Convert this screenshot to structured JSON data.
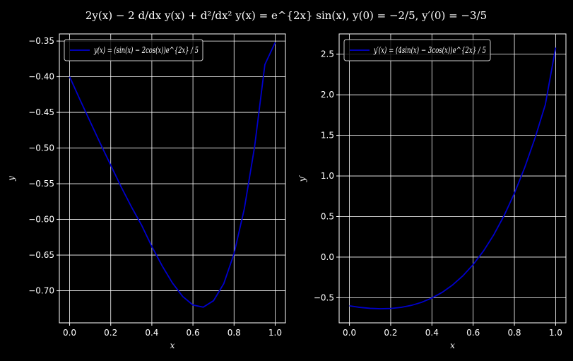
{
  "figure": {
    "title": "2y(x) − 2 d/dx y(x) + d²/dx² y(x) = e^{2x} sin(x), y(0) = −2/5, y′(0) = −3/5"
  },
  "colors": {
    "background": "#000000",
    "grid": "#ffffff",
    "line": "#0000cc",
    "text": "#ffffff"
  },
  "chart_data": [
    {
      "type": "line",
      "xlabel": "x",
      "ylabel": "y",
      "xlim": [
        -0.05,
        1.05
      ],
      "ylim": [
        -0.745,
        -0.34
      ],
      "xticks": [
        0.0,
        0.2,
        0.4,
        0.6,
        0.8,
        1.0
      ],
      "xtick_labels": [
        "0.0",
        "0.2",
        "0.4",
        "0.6",
        "0.8",
        "1.0"
      ],
      "yticks": [
        -0.7,
        -0.65,
        -0.6,
        -0.55,
        -0.5,
        -0.45,
        -0.4,
        -0.35
      ],
      "ytick_labels": [
        "−0.70",
        "−0.65",
        "−0.60",
        "−0.55",
        "−0.50",
        "−0.45",
        "−0.40",
        "−0.35"
      ],
      "grid": true,
      "legend_position": "top-left",
      "series": [
        {
          "name": "y(x) = (sin(x) − 2cos(x))e^{2x} / 5",
          "x": [
            0.0,
            0.05,
            0.1,
            0.15,
            0.2,
            0.25,
            0.3,
            0.35,
            0.4,
            0.45,
            0.5,
            0.55,
            0.6,
            0.65,
            0.7,
            0.75,
            0.8,
            0.85,
            0.9,
            0.95,
            1.0
          ],
          "y": [
            -0.4,
            -0.432,
            -0.463,
            -0.494,
            -0.524,
            -0.554,
            -0.582,
            -0.608,
            -0.638,
            -0.665,
            -0.689,
            -0.708,
            -0.72,
            -0.723,
            -0.714,
            -0.69,
            -0.648,
            -0.585,
            -0.498,
            -0.383,
            -0.352
          ]
        }
      ]
    },
    {
      "type": "line",
      "xlabel": "x",
      "ylabel": "y′",
      "xlim": [
        -0.05,
        1.05
      ],
      "ylim": [
        -0.81,
        2.75
      ],
      "xticks": [
        0.0,
        0.2,
        0.4,
        0.6,
        0.8,
        1.0
      ],
      "xtick_labels": [
        "0.0",
        "0.2",
        "0.4",
        "0.6",
        "0.8",
        "1.0"
      ],
      "yticks": [
        -0.5,
        0.0,
        0.5,
        1.0,
        1.5,
        2.0,
        2.5
      ],
      "ytick_labels": [
        "−0.5",
        "0.0",
        "0.5",
        "1.0",
        "1.5",
        "2.0",
        "2.5"
      ],
      "grid": true,
      "legend_position": "top-left",
      "series": [
        {
          "name": "y′(x) = (4sin(x) − 3cos(x))e^{2x} / 5",
          "x": [
            0.0,
            0.05,
            0.1,
            0.15,
            0.2,
            0.25,
            0.3,
            0.35,
            0.4,
            0.45,
            0.5,
            0.55,
            0.6,
            0.65,
            0.7,
            0.75,
            0.8,
            0.85,
            0.9,
            0.95,
            1.0
          ],
          "y": [
            -0.6,
            -0.619,
            -0.631,
            -0.636,
            -0.633,
            -0.62,
            -0.595,
            -0.557,
            -0.504,
            -0.434,
            -0.344,
            -0.231,
            -0.092,
            0.075,
            0.275,
            0.511,
            0.786,
            1.103,
            1.466,
            1.878,
            2.581
          ]
        }
      ]
    }
  ]
}
